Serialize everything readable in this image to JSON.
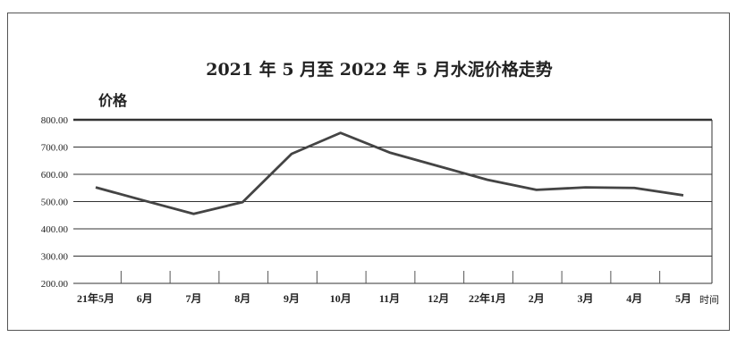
{
  "chart_data": {
    "type": "line",
    "title": "2021 年 5 月至 2022 年 5 月水泥价格走势",
    "ylabel": "价格",
    "xlabel": "时间",
    "ylim": [
      200,
      800
    ],
    "yticks": [
      "800.00",
      "700.00",
      "600.00",
      "500.00",
      "400.00",
      "300.00",
      "200.00"
    ],
    "categories": [
      "21年5月",
      "6月",
      "7月",
      "8月",
      "9月",
      "10月",
      "11月",
      "12月",
      "22年1月",
      "2月",
      "3月",
      "4月",
      "5月"
    ],
    "series": [
      {
        "values": [
          552,
          503,
          455,
          498,
          675,
          752,
          680,
          630,
          580,
          543,
          552,
          550,
          523
        ]
      }
    ],
    "grid": true,
    "legend": "none",
    "line_color": "#444444"
  }
}
